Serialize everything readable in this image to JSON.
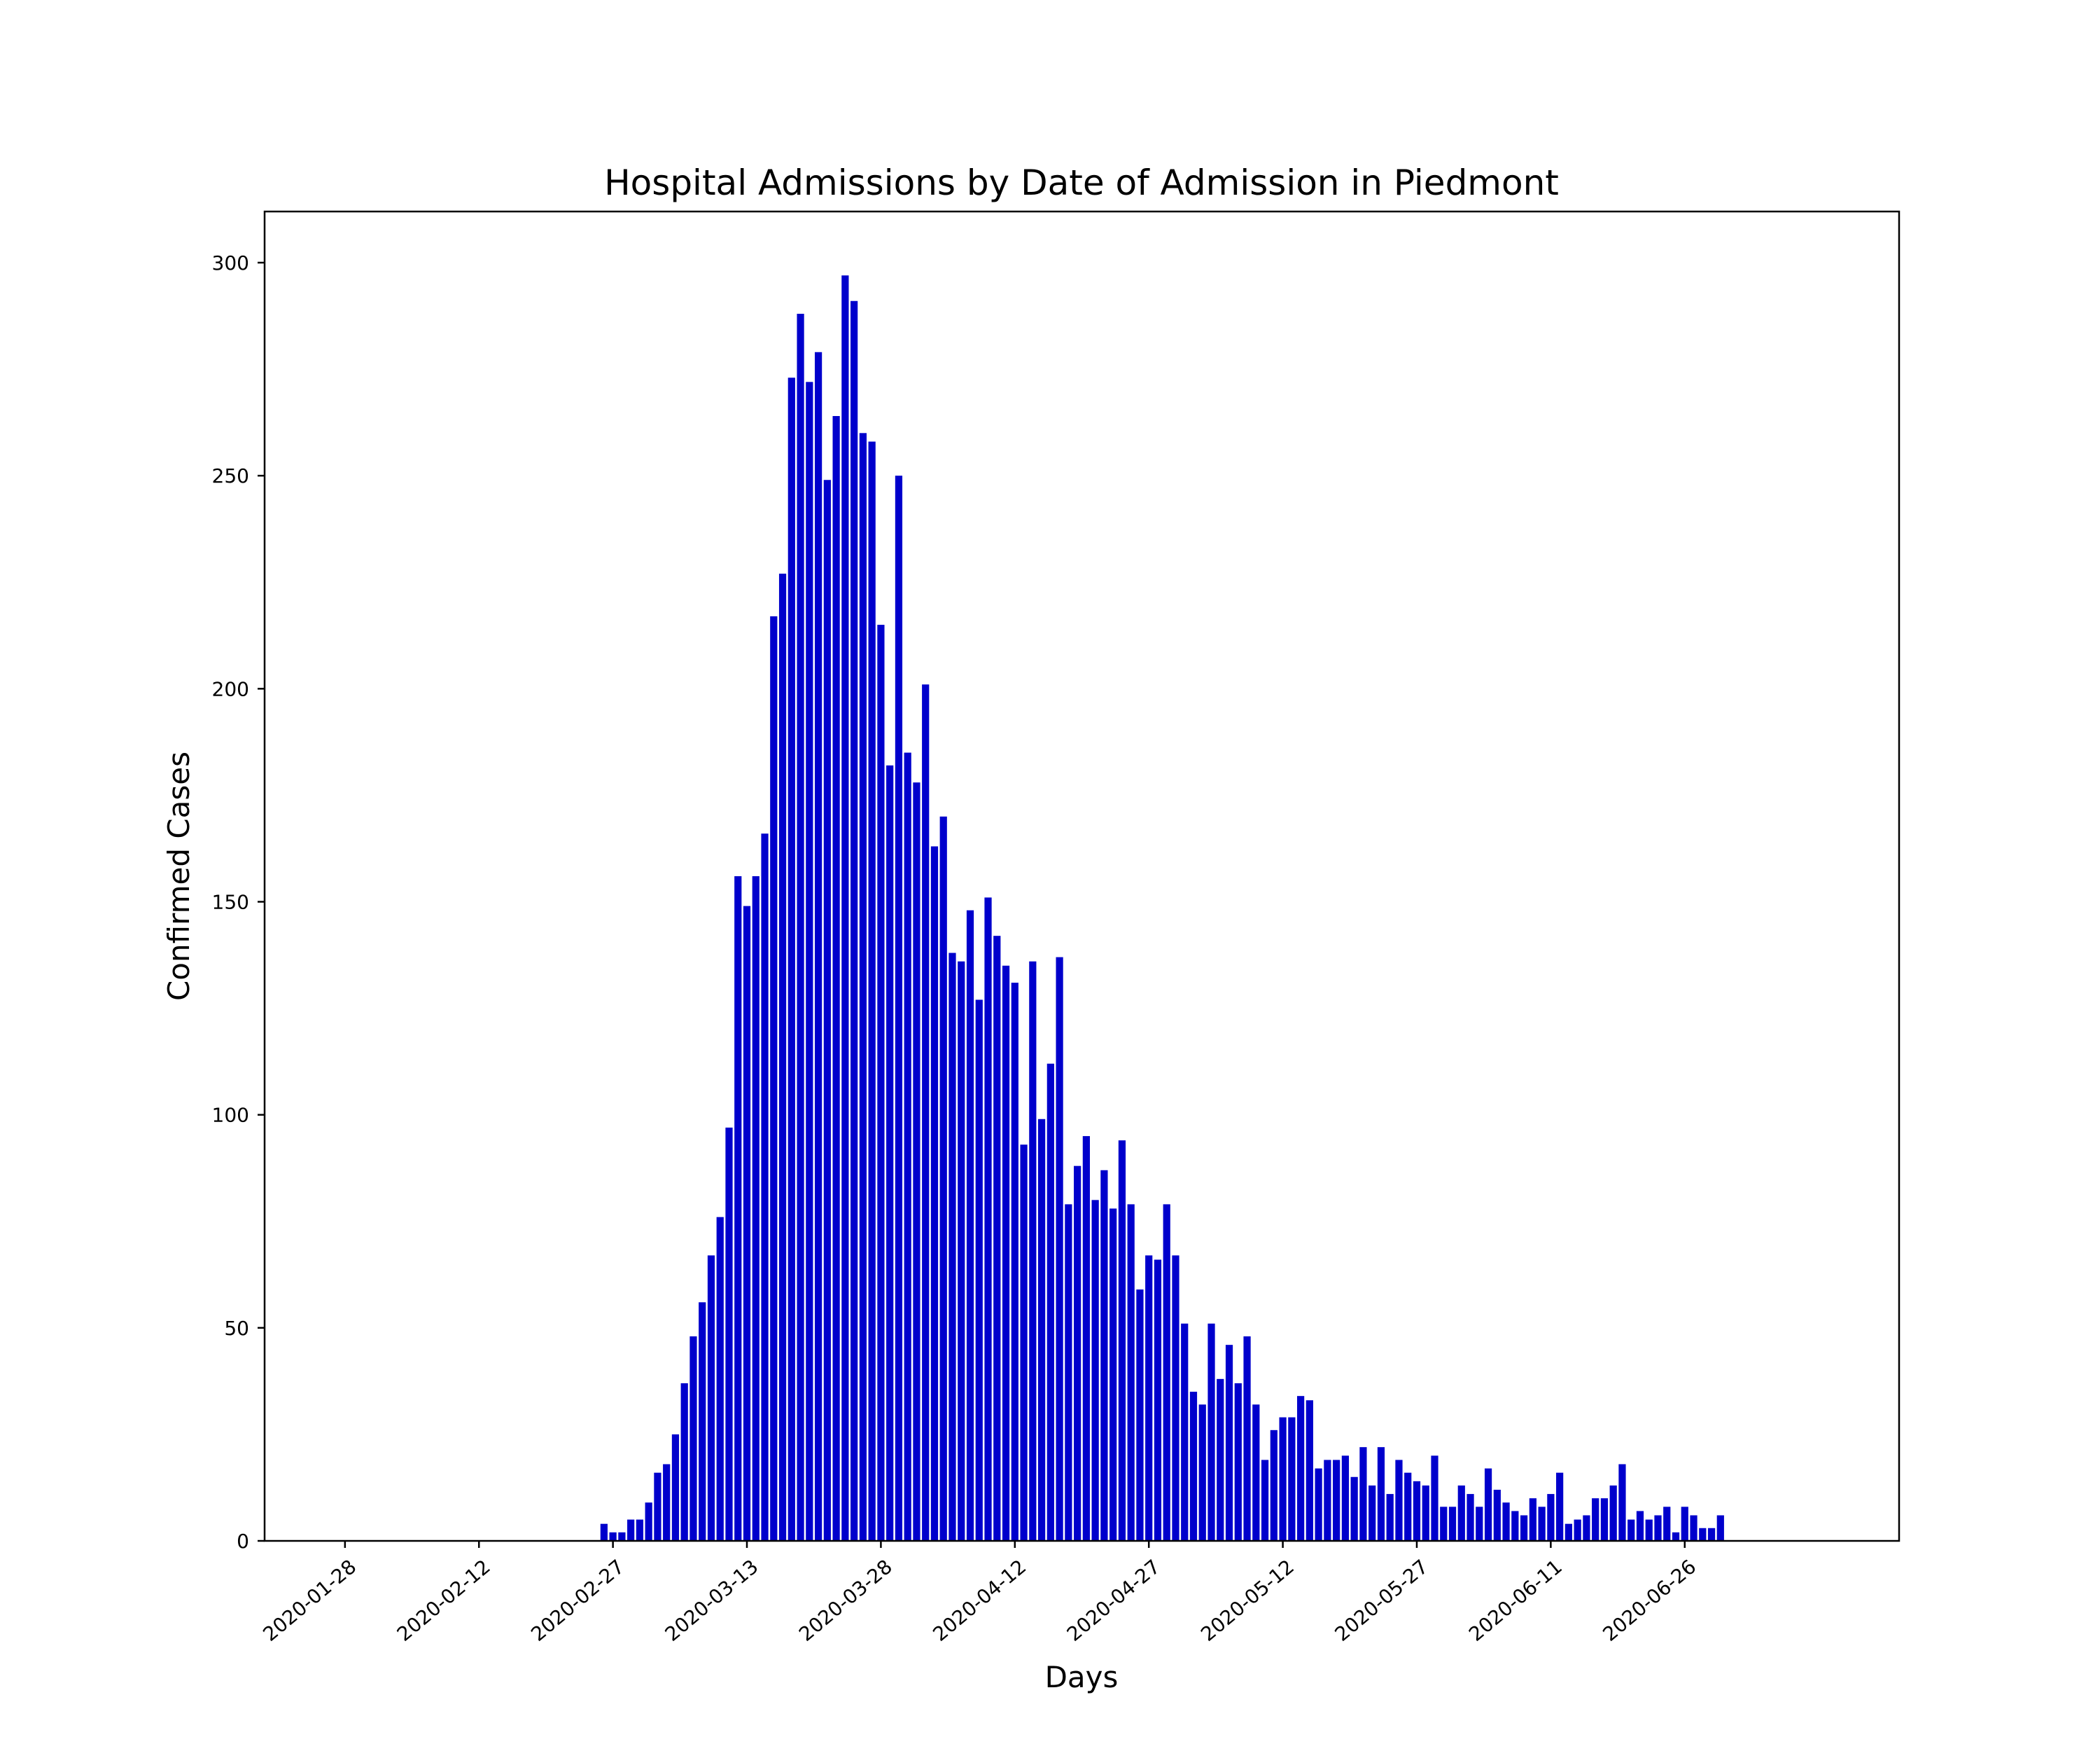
{
  "chart_data": {
    "type": "bar",
    "title": "Hospital Admissions by Date of Admission in Piedmont",
    "xlabel": "Days",
    "ylabel": "Confirmed Cases",
    "ylim": [
      0,
      312
    ],
    "xlim": [
      "2020-01-19",
      "2020-07-20"
    ],
    "grid": false,
    "bar_color": "#0000cc",
    "x_ticks": [
      "2020-01-28",
      "2020-02-12",
      "2020-02-27",
      "2020-03-13",
      "2020-03-28",
      "2020-04-12",
      "2020-04-27",
      "2020-05-12",
      "2020-05-27",
      "2020-06-11",
      "2020-06-26"
    ],
    "y_ticks": [
      0,
      50,
      100,
      150,
      200,
      250,
      300
    ],
    "series": [
      {
        "name": "",
        "x": [
          "2020-02-26",
          "2020-02-27",
          "2020-02-28",
          "2020-02-29",
          "2020-03-01",
          "2020-03-02",
          "2020-03-03",
          "2020-03-04",
          "2020-03-05",
          "2020-03-06",
          "2020-03-07",
          "2020-03-08",
          "2020-03-09",
          "2020-03-10",
          "2020-03-11",
          "2020-03-12",
          "2020-03-13",
          "2020-03-14",
          "2020-03-15",
          "2020-03-16",
          "2020-03-17",
          "2020-03-18",
          "2020-03-19",
          "2020-03-20",
          "2020-03-21",
          "2020-03-22",
          "2020-03-23",
          "2020-03-24",
          "2020-03-25",
          "2020-03-26",
          "2020-03-27",
          "2020-03-28",
          "2020-03-29",
          "2020-03-30",
          "2020-03-31",
          "2020-04-01",
          "2020-04-02",
          "2020-04-03",
          "2020-04-04",
          "2020-04-05",
          "2020-04-06",
          "2020-04-07",
          "2020-04-08",
          "2020-04-09",
          "2020-04-10",
          "2020-04-11",
          "2020-04-12",
          "2020-04-13",
          "2020-04-14",
          "2020-04-15",
          "2020-04-16",
          "2020-04-17",
          "2020-04-18",
          "2020-04-19",
          "2020-04-20",
          "2020-04-21",
          "2020-04-22",
          "2020-04-23",
          "2020-04-24",
          "2020-04-25",
          "2020-04-26",
          "2020-04-27",
          "2020-04-28",
          "2020-04-29",
          "2020-04-30",
          "2020-05-01",
          "2020-05-02",
          "2020-05-03",
          "2020-05-04",
          "2020-05-05",
          "2020-05-06",
          "2020-05-07",
          "2020-05-08",
          "2020-05-09",
          "2020-05-10",
          "2020-05-11",
          "2020-05-12",
          "2020-05-13",
          "2020-05-14",
          "2020-05-15",
          "2020-05-16",
          "2020-05-17",
          "2020-05-18",
          "2020-05-19",
          "2020-05-20",
          "2020-05-21",
          "2020-05-22",
          "2020-05-23",
          "2020-05-24",
          "2020-05-25",
          "2020-05-26",
          "2020-05-27",
          "2020-05-28",
          "2020-05-29",
          "2020-05-30",
          "2020-05-31",
          "2020-06-01",
          "2020-06-02",
          "2020-06-03",
          "2020-06-04",
          "2020-06-05",
          "2020-06-06",
          "2020-06-07",
          "2020-06-08",
          "2020-06-09",
          "2020-06-10",
          "2020-06-11",
          "2020-06-12",
          "2020-06-13",
          "2020-06-14",
          "2020-06-15",
          "2020-06-16",
          "2020-06-17",
          "2020-06-18",
          "2020-06-19",
          "2020-06-20",
          "2020-06-21",
          "2020-06-22",
          "2020-06-23",
          "2020-06-24",
          "2020-06-25",
          "2020-06-26",
          "2020-06-27",
          "2020-06-28",
          "2020-06-29",
          "2020-06-30"
        ],
        "values": [
          4,
          2,
          2,
          5,
          5,
          9,
          16,
          18,
          25,
          37,
          48,
          56,
          67,
          76,
          97,
          156,
          149,
          156,
          166,
          217,
          227,
          273,
          288,
          272,
          279,
          249,
          264,
          297,
          291,
          260,
          258,
          215,
          182,
          250,
          185,
          178,
          201,
          163,
          170,
          138,
          136,
          148,
          127,
          151,
          142,
          135,
          131,
          93,
          136,
          99,
          112,
          137,
          79,
          88,
          95,
          80,
          87,
          78,
          94,
          79,
          59,
          67,
          66,
          79,
          67,
          51,
          35,
          32,
          51,
          38,
          46,
          37,
          48,
          32,
          19,
          26,
          29,
          29,
          34,
          33,
          17,
          19,
          19,
          20,
          15,
          22,
          13,
          22,
          11,
          19,
          16,
          14,
          13,
          20,
          8,
          8,
          13,
          11,
          8,
          17,
          12,
          9,
          7,
          6,
          10,
          8,
          11,
          16,
          4,
          5,
          6,
          10,
          10,
          13,
          18,
          5,
          7,
          5,
          6,
          8,
          2,
          8,
          6,
          3,
          3,
          6
        ]
      }
    ]
  }
}
